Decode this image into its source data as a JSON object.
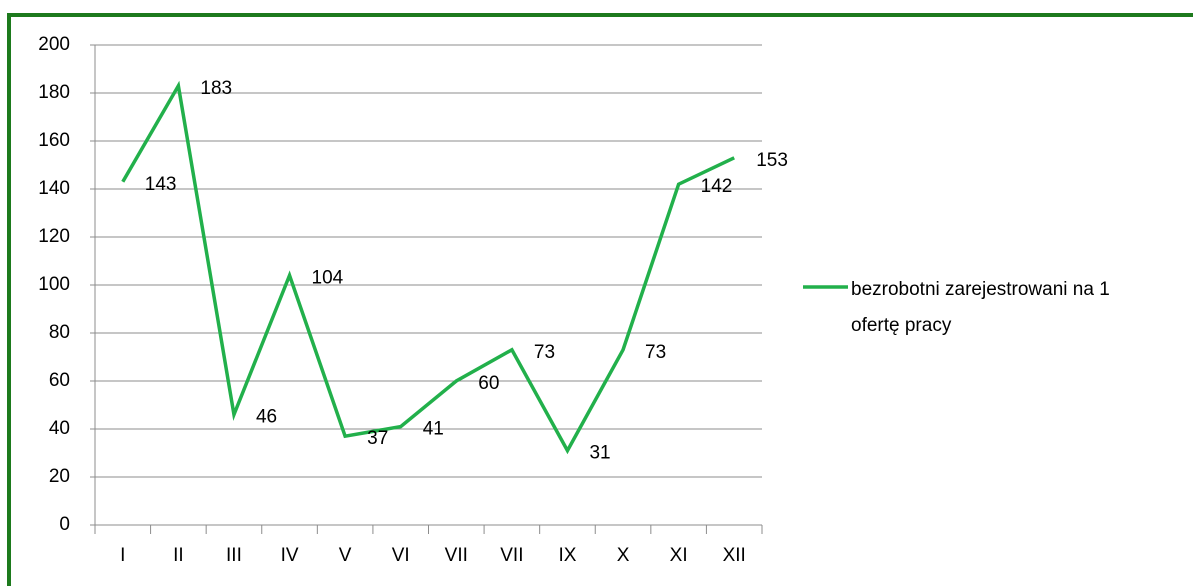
{
  "chart_data": {
    "type": "line",
    "categories": [
      "I",
      "II",
      "III",
      "IV",
      "V",
      "VI",
      "VII",
      "VII",
      "IX",
      "X",
      "XI",
      "XII"
    ],
    "series": [
      {
        "name": "bezrobotni zarejestrowani na 1 ofertę pracy",
        "color": "#22b04b",
        "values": [
          143,
          183,
          46,
          104,
          37,
          41,
          60,
          73,
          31,
          73,
          142,
          153
        ]
      }
    ],
    "ylim": [
      0,
      200
    ],
    "yticks": [
      0,
      20,
      40,
      60,
      80,
      100,
      120,
      140,
      160,
      180,
      200
    ],
    "grid": true,
    "legend": "right"
  }
}
